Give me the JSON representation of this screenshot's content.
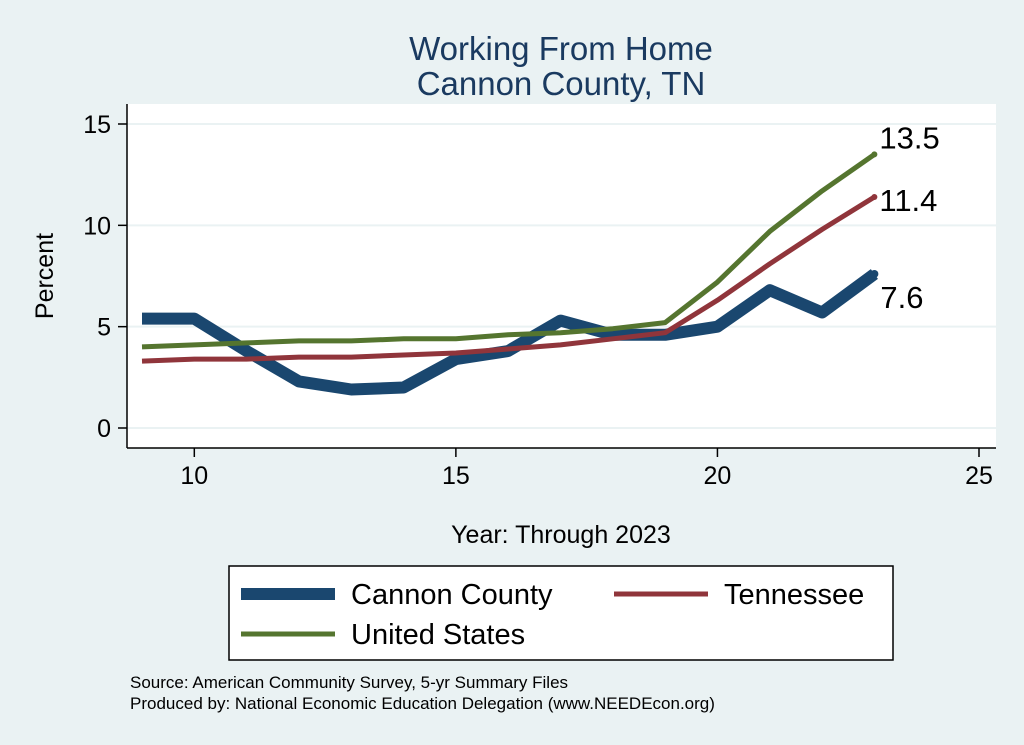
{
  "chart_data": {
    "type": "line",
    "title": "Working From Home",
    "subtitle": "Cannon County, TN",
    "xlabel": "Year: Through 2023",
    "ylabel": "Percent",
    "xlim": [
      9,
      25
    ],
    "ylim": [
      0,
      15
    ],
    "xticks": [
      10,
      15,
      20,
      25
    ],
    "yticks": [
      0,
      5,
      10,
      15
    ],
    "grid": true,
    "legend_position": "bottom",
    "series": [
      {
        "name": "Cannon County",
        "color": "#1a476f",
        "x": [
          9,
          10,
          11,
          12,
          13,
          14,
          15,
          16,
          17,
          18,
          19,
          20,
          21,
          22,
          23
        ],
        "values": [
          5.4,
          5.4,
          3.8,
          2.3,
          1.9,
          2.0,
          3.4,
          3.8,
          5.3,
          4.6,
          4.6,
          5.0,
          6.8,
          5.7,
          7.6
        ],
        "end_label": "7.6"
      },
      {
        "name": "Tennessee",
        "color": "#90353b",
        "x": [
          9,
          10,
          11,
          12,
          13,
          14,
          15,
          16,
          17,
          18,
          19,
          20,
          21,
          22,
          23
        ],
        "values": [
          3.3,
          3.4,
          3.4,
          3.5,
          3.5,
          3.6,
          3.7,
          3.9,
          4.1,
          4.4,
          4.7,
          6.3,
          8.1,
          9.8,
          11.4
        ],
        "end_label": "11.4"
      },
      {
        "name": "United States",
        "color": "#55752f",
        "x": [
          9,
          10,
          11,
          12,
          13,
          14,
          15,
          16,
          17,
          18,
          19,
          20,
          21,
          22,
          23
        ],
        "values": [
          4.0,
          4.1,
          4.2,
          4.3,
          4.3,
          4.4,
          4.4,
          4.6,
          4.7,
          4.9,
          5.2,
          7.2,
          9.7,
          11.7,
          13.5
        ],
        "end_label": "13.5"
      }
    ],
    "notes": [
      "Source: American Community Survey, 5-yr Summary Files",
      "Produced by: National Economic Education Delegation (www.NEEDEcon.org)"
    ]
  }
}
